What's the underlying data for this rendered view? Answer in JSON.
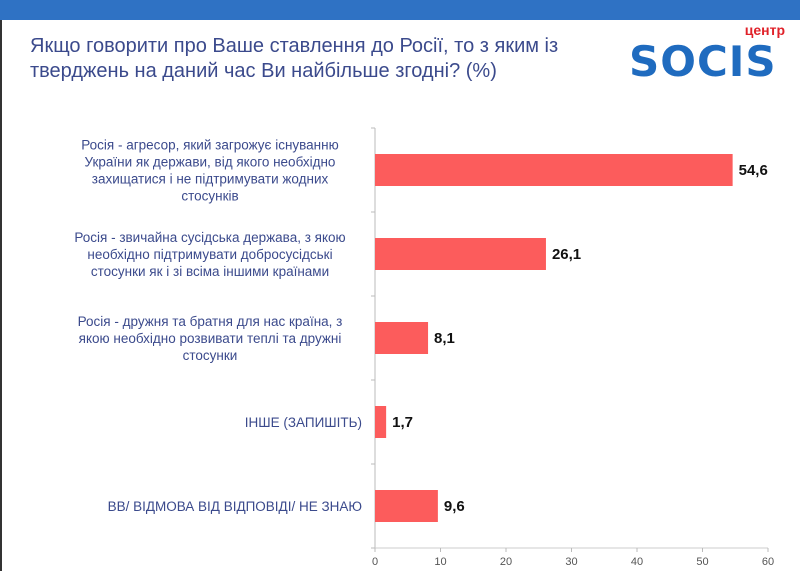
{
  "title": "Якщо говорити про Ваше ставлення до Росії, то з яким із тверджень на даний час Ви найбільше згодні? (%)",
  "title_lines": [
    "Якщо говорити про Ваше ставлення до Росії, то з яким із",
    "тверджень на даний час Ви найбільше згодні? (%)"
  ],
  "logo": {
    "small": "центр",
    "big": "SOCIS"
  },
  "colors": {
    "bar": "#fc5c5c",
    "header": "#2f72c4",
    "text": "#3b4a8c"
  },
  "chart_data": {
    "type": "bar",
    "orientation": "horizontal",
    "categories": [
      [
        "Росія - агресор, який загрожує існуванню",
        "України як держави, від якого необхідно",
        "захищатися і не підтримувати жодних",
        "стосунків"
      ],
      [
        "Росія - звичайна сусідська держава, з якою",
        "необхідно підтримувати добросусідські",
        "стосунки як і зі всіма іншими країнами"
      ],
      [
        "Росія - дружня та братня для нас країна, з",
        "якою необхідно розвивати теплі та дружні",
        "стосунки"
      ],
      [
        "ІНШЕ (ЗАПИШІТЬ)"
      ],
      [
        "ВВ/ ВІДМОВА ВІД ВІДПОВІДІ/ НЕ ЗНАЮ"
      ]
    ],
    "values": [
      54.6,
      26.1,
      8.1,
      1.7,
      9.6
    ],
    "value_labels": [
      "54,6",
      "26,1",
      "8,1",
      "1,7",
      "9,6"
    ],
    "xlim": [
      0,
      60
    ],
    "xticks": [
      "0",
      "10",
      "20",
      "30",
      "40",
      "50",
      "60"
    ]
  }
}
